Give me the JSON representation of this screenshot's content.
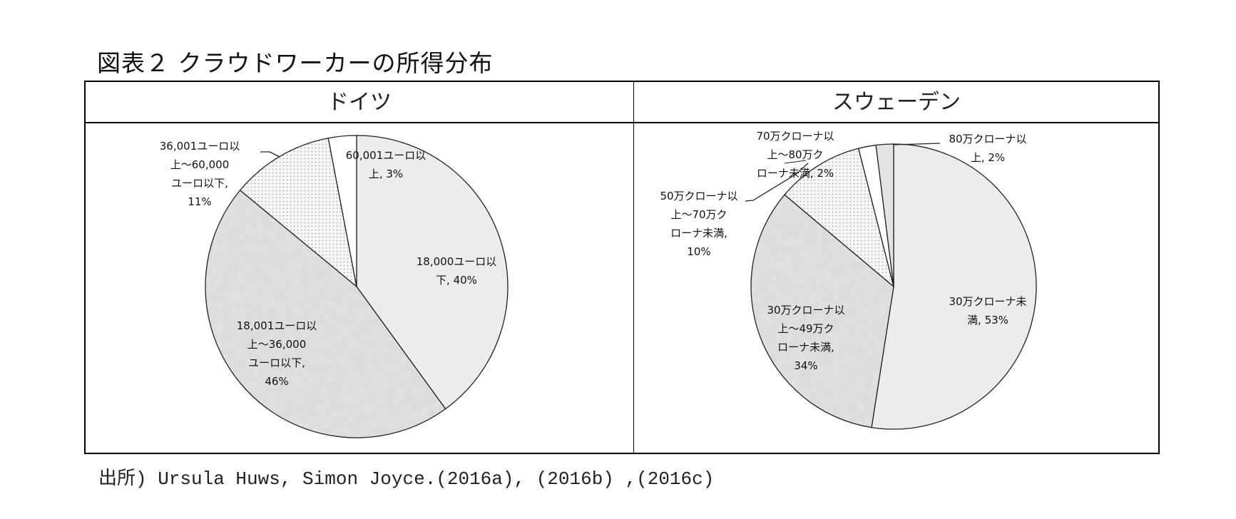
{
  "title": "図表２ クラウドワーカーの所得分布",
  "columns": {
    "germany": "ドイツ",
    "sweden": "スウェーデン"
  },
  "source": "出所) Ursula Huws, Simon Joyce.(2016a), (2016b) ,(2016c)",
  "labels": {
    "de": [
      {
        "line1": "18,000ユーロ以",
        "line2": "下, 40%"
      },
      {
        "line1": "18,001ユーロ以",
        "line2": "上～36,000",
        "line3": "ユーロ以下,",
        "line4": "46%"
      },
      {
        "line1": "36,001ユーロ以",
        "line2": "上～60,000",
        "line3": "ユーロ以下,",
        "line4": "11%"
      },
      {
        "line1": "60,001ユーロ以",
        "line2": "上, 3%"
      }
    ],
    "se": [
      {
        "line1": "30万クローナ未",
        "line2": "満, 53%"
      },
      {
        "line1": "30万クローナ以",
        "line2": "上～49万ク",
        "line3": "ローナ未満,",
        "line4": "34%"
      },
      {
        "line1": "50万クローナ以",
        "line2": "上～70万ク",
        "line3": "ローナ未満,",
        "line4": "10%"
      },
      {
        "line1": "70万クローナ以",
        "line2": "上～80万ク",
        "line3": "ローナ未満, 2%"
      },
      {
        "line1": "80万クローナ以",
        "line2": "上, 2%"
      }
    ]
  },
  "colors": {
    "light_fill": "#ececec",
    "mottled_fill": "#d9d9d9",
    "dotted_fill": "#f4f4f4",
    "white_fill": "#ffffff",
    "small_gray_fill": "#e3e3e3",
    "stroke": "#222222"
  },
  "chart_data": [
    {
      "type": "pie",
      "title": "ドイツ",
      "categories": [
        "18,000ユーロ以下",
        "18,001ユーロ以上～36,000ユーロ以下",
        "36,001ユーロ以上～60,000ユーロ以下",
        "60,001ユーロ以上"
      ],
      "values": [
        40,
        46,
        11,
        3
      ],
      "unit": "%",
      "start_angle": "12 o'clock, clockwise",
      "legend": "none (data labels)"
    },
    {
      "type": "pie",
      "title": "スウェーデン",
      "categories": [
        "30万クローナ未満",
        "30万クローナ以上～49万クローナ未満",
        "50万クローナ以上～70万クローナ未満",
        "70万クローナ以上～80万クローナ未満",
        "80万クローナ以上"
      ],
      "values": [
        53,
        34,
        10,
        2,
        2
      ],
      "unit": "%",
      "start_angle": "12 o'clock, clockwise",
      "legend": "none (data labels)"
    }
  ]
}
